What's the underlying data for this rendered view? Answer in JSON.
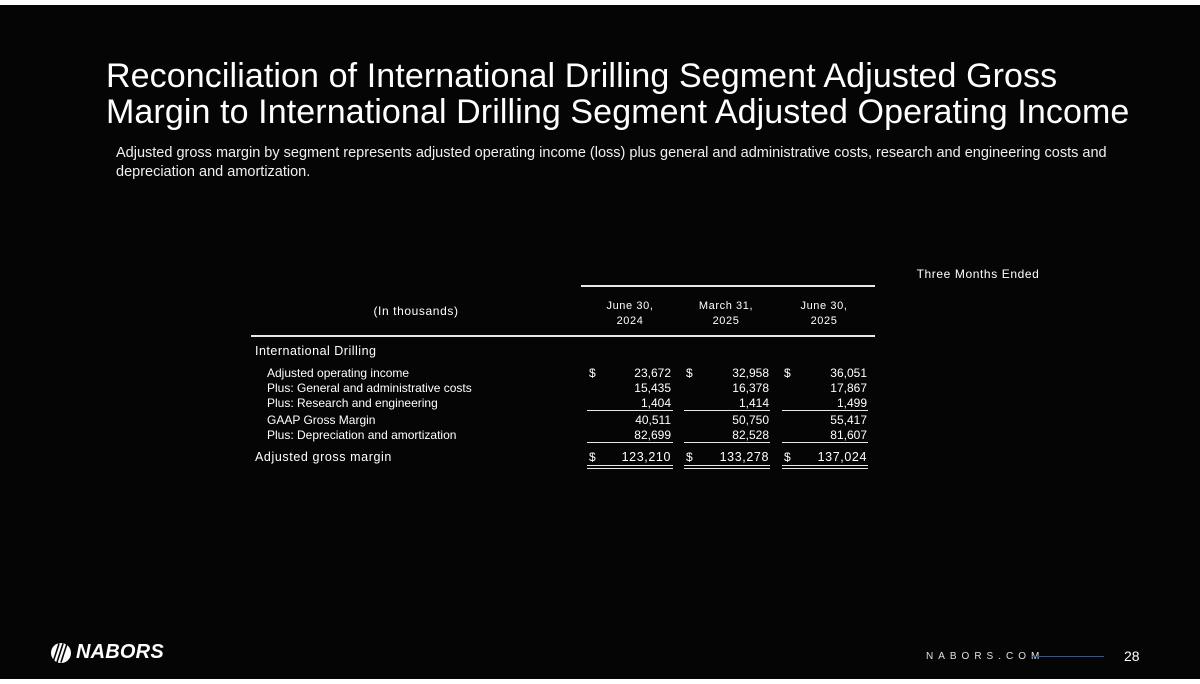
{
  "slide": {
    "title_line1": "Reconciliation of International Drilling Segment Adjusted Gross",
    "title_line2": "Margin to International Drilling Segment Adjusted Operating Income",
    "subtitle": "Adjusted gross margin by segment represents adjusted operating income  (loss) plus general and administrative costs, research and engineering costs and depreciation and amortization.",
    "page_number": "28",
    "website": "NABORS.COM",
    "logo_text": "NABORS"
  },
  "table": {
    "group_header": "Three Months Ended",
    "unit_label": "(In thousands)",
    "columns": [
      {
        "line1": "June 30,",
        "line2": "2024"
      },
      {
        "line1": "March 31,",
        "line2": "2025"
      },
      {
        "line1": "June 30,",
        "line2": "2025"
      }
    ],
    "section_label": "International Drilling",
    "currency_symbol": "$",
    "rows": [
      {
        "label": "Adjusted operating income",
        "values": [
          "23,672",
          "32,958",
          "36,051"
        ]
      },
      {
        "label": "Plus: General and administrative costs",
        "values": [
          "15,435",
          "16,378",
          "17,867"
        ]
      },
      {
        "label": "Plus: Research and engineering",
        "values": [
          "1,404",
          "1,414",
          "1,499"
        ]
      },
      {
        "label": "GAAP Gross Margin",
        "values": [
          "40,511",
          "50,750",
          "55,417"
        ]
      },
      {
        "label": "Plus: Depreciation and amortization",
        "values": [
          "82,699",
          "82,528",
          "81,607"
        ]
      }
    ],
    "total": {
      "label": "Adjusted gross margin",
      "values": [
        "123,210",
        "133,278",
        "137,024"
      ]
    }
  },
  "colors": {
    "background": "#050505",
    "text": "#ffffff",
    "accent_line": "#2a56a8"
  }
}
